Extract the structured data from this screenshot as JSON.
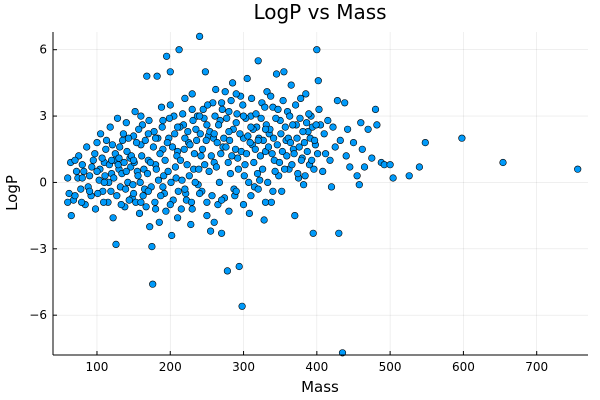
{
  "chart_data": {
    "type": "scatter",
    "title": "LogP vs Mass",
    "xlabel": "Mass",
    "ylabel": "LogP",
    "xlim": [
      40,
      770
    ],
    "ylim": [
      -7.8,
      6.8
    ],
    "xticks": [
      100,
      200,
      300,
      400,
      500,
      600,
      700
    ],
    "yticks": [
      -6,
      -3,
      0,
      3,
      6
    ],
    "ytick_labels": [
      "−6",
      "−3",
      "0",
      "3",
      "6"
    ],
    "grid": true,
    "legend": "none",
    "marker_color": "#009AFA",
    "points": [
      [
        60,
        0.2
      ],
      [
        62,
        -0.5
      ],
      [
        65,
        -1.5
      ],
      [
        68,
        -0.8
      ],
      [
        72,
        0.5
      ],
      [
        75,
        1.2
      ],
      [
        78,
        -0.3
      ],
      [
        80,
        0.8
      ],
      [
        84,
        -1.0
      ],
      [
        86,
        1.6
      ],
      [
        90,
        0.3
      ],
      [
        92,
        -0.6
      ],
      [
        95,
        1.0
      ],
      [
        98,
        -1.2
      ],
      [
        100,
        1.8
      ],
      [
        103,
        0.1
      ],
      [
        105,
        2.2
      ],
      [
        108,
        -0.4
      ],
      [
        110,
        0.9
      ],
      [
        112,
        1.5
      ],
      [
        115,
        -0.9
      ],
      [
        118,
        2.5
      ],
      [
        120,
        0.4
      ],
      [
        122,
        -1.6
      ],
      [
        125,
        1.3
      ],
      [
        126,
        -2.8
      ],
      [
        128,
        2.9
      ],
      [
        130,
        0.6
      ],
      [
        132,
        -0.2
      ],
      [
        135,
        1.9
      ],
      [
        138,
        -1.1
      ],
      [
        140,
        2.7
      ],
      [
        142,
        0.0
      ],
      [
        145,
        1.1
      ],
      [
        148,
        -0.7
      ],
      [
        150,
        2.1
      ],
      [
        152,
        3.2
      ],
      [
        155,
        0.5
      ],
      [
        158,
        -1.4
      ],
      [
        160,
        1.7
      ],
      [
        162,
        2.6
      ],
      [
        165,
        -0.3
      ],
      [
        168,
        4.8
      ],
      [
        170,
        1.0
      ],
      [
        172,
        -2.0
      ],
      [
        175,
        -2.9
      ],
      [
        176,
        -4.6
      ],
      [
        178,
        2.3
      ],
      [
        180,
        0.8
      ],
      [
        182,
        4.8
      ],
      [
        185,
        -1.8
      ],
      [
        188,
        3.4
      ],
      [
        190,
        1.5
      ],
      [
        192,
        -0.5
      ],
      [
        195,
        5.7
      ],
      [
        198,
        2.0
      ],
      [
        200,
        5.0
      ],
      [
        202,
        -2.4
      ],
      [
        205,
        3.0
      ],
      [
        208,
        0.2
      ],
      [
        210,
        1.4
      ],
      [
        212,
        6.0
      ],
      [
        215,
        -1.2
      ],
      [
        218,
        2.6
      ],
      [
        220,
        3.8
      ],
      [
        222,
        -0.8
      ],
      [
        225,
        1.8
      ],
      [
        228,
        -1.9
      ],
      [
        230,
        4.0
      ],
      [
        232,
        0.6
      ],
      [
        235,
        2.4
      ],
      [
        238,
        -0.1
      ],
      [
        240,
        6.6
      ],
      [
        242,
        1.2
      ],
      [
        245,
        3.3
      ],
      [
        248,
        5.0
      ],
      [
        250,
        -1.5
      ],
      [
        252,
        2.1
      ],
      [
        255,
        -2.2
      ],
      [
        258,
        3.6
      ],
      [
        260,
        0.9
      ],
      [
        262,
        4.2
      ],
      [
        265,
        -1.0
      ],
      [
        268,
        2.8
      ],
      [
        270,
        -2.3
      ],
      [
        272,
        1.6
      ],
      [
        275,
        4.1
      ],
      [
        278,
        -4.0
      ],
      [
        280,
        3.2
      ],
      [
        282,
        0.4
      ],
      [
        285,
        4.5
      ],
      [
        288,
        -0.6
      ],
      [
        290,
        2.7
      ],
      [
        292,
        1.1
      ],
      [
        294,
        -3.8
      ],
      [
        296,
        3.9
      ],
      [
        298,
        -5.6
      ],
      [
        300,
        2.0
      ],
      [
        302,
        0.8
      ],
      [
        305,
        4.7
      ],
      [
        308,
        -1.4
      ],
      [
        310,
        3.0
      ],
      [
        312,
        1.7
      ],
      [
        315,
        -0.2
      ],
      [
        318,
        2.5
      ],
      [
        320,
        5.5
      ],
      [
        322,
        0.1
      ],
      [
        325,
        3.6
      ],
      [
        328,
        -1.7
      ],
      [
        330,
        1.4
      ],
      [
        332,
        4.1
      ],
      [
        335,
        2.2
      ],
      [
        338,
        -0.9
      ],
      [
        340,
        3.4
      ],
      [
        342,
        1.0
      ],
      [
        345,
        4.9
      ],
      [
        348,
        0.3
      ],
      [
        350,
        2.8
      ],
      [
        352,
        -0.4
      ],
      [
        355,
        5.0
      ],
      [
        358,
        1.9
      ],
      [
        360,
        3.2
      ],
      [
        362,
        0.6
      ],
      [
        365,
        4.4
      ],
      [
        368,
        1.5
      ],
      [
        370,
        -1.5
      ],
      [
        372,
        2.6
      ],
      [
        375,
        0.2
      ],
      [
        378,
        3.8
      ],
      [
        380,
        1.1
      ],
      [
        382,
        -0.1
      ],
      [
        385,
        4.0
      ],
      [
        388,
        2.3
      ],
      [
        390,
        0.8
      ],
      [
        392,
        3.0
      ],
      [
        395,
        -2.3
      ],
      [
        398,
        1.7
      ],
      [
        400,
        6.0
      ],
      [
        402,
        4.6
      ],
      [
        405,
        2.6
      ],
      [
        408,
        0.5
      ],
      [
        410,
        2.2
      ],
      [
        412,
        1.3
      ],
      [
        415,
        2.8
      ],
      [
        418,
        1.0
      ],
      [
        420,
        -0.2
      ],
      [
        422,
        2.5
      ],
      [
        425,
        1.6
      ],
      [
        428,
        3.7
      ],
      [
        430,
        -2.3
      ],
      [
        432,
        1.9
      ],
      [
        435,
        -7.7
      ],
      [
        438,
        3.6
      ],
      [
        440,
        1.2
      ],
      [
        442,
        2.4
      ],
      [
        445,
        0.7
      ],
      [
        450,
        1.8
      ],
      [
        455,
        0.3
      ],
      [
        458,
        -0.1
      ],
      [
        460,
        2.7
      ],
      [
        462,
        1.5
      ],
      [
        465,
        0.7
      ],
      [
        470,
        2.4
      ],
      [
        475,
        1.1
      ],
      [
        480,
        3.3
      ],
      [
        482,
        2.6
      ],
      [
        488,
        0.9
      ],
      [
        492,
        0.8
      ],
      [
        500,
        0.8
      ],
      [
        504,
        0.2
      ],
      [
        526,
        0.3
      ],
      [
        540,
        0.7
      ],
      [
        548,
        1.8
      ],
      [
        598,
        2.0
      ],
      [
        654,
        0.9
      ],
      [
        756,
        0.6
      ],
      [
        64,
        0.9
      ],
      [
        70,
        -0.6
      ],
      [
        74,
        0.2
      ],
      [
        79,
        -0.9
      ],
      [
        82,
        0.5
      ],
      [
        88,
        -0.2
      ],
      [
        93,
        0.7
      ],
      [
        97,
        1.3
      ],
      [
        101,
        -0.5
      ],
      [
        104,
        0.6
      ],
      [
        107,
        1.1
      ],
      [
        109,
        -0.9
      ],
      [
        111,
        0.3
      ],
      [
        113,
        1.9
      ],
      [
        116,
        0.0
      ],
      [
        117,
        0.8
      ],
      [
        119,
        -0.4
      ],
      [
        121,
        1.7
      ],
      [
        123,
        0.2
      ],
      [
        124,
        1.0
      ],
      [
        127,
        -0.6
      ],
      [
        129,
        0.8
      ],
      [
        131,
        1.6
      ],
      [
        133,
        -1.0
      ],
      [
        134,
        0.4
      ],
      [
        136,
        2.2
      ],
      [
        137,
        0.9
      ],
      [
        139,
        -0.3
      ],
      [
        141,
        1.4
      ],
      [
        143,
        2.0
      ],
      [
        144,
        -0.8
      ],
      [
        146,
        0.7
      ],
      [
        147,
        1.2
      ],
      [
        149,
        -0.1
      ],
      [
        151,
        0.9
      ],
      [
        153,
        -0.9
      ],
      [
        154,
        1.8
      ],
      [
        156,
        0.3
      ],
      [
        157,
        2.4
      ],
      [
        159,
        0.0
      ],
      [
        161,
        1.2
      ],
      [
        163,
        -0.6
      ],
      [
        164,
        0.6
      ],
      [
        166,
        1.9
      ],
      [
        167,
        -1.1
      ],
      [
        169,
        0.4
      ],
      [
        171,
        2.8
      ],
      [
        173,
        0.9
      ],
      [
        174,
        -0.2
      ],
      [
        177,
        1.6
      ],
      [
        179,
        -0.9
      ],
      [
        181,
        0.6
      ],
      [
        183,
        2.0
      ],
      [
        184,
        0.1
      ],
      [
        186,
        1.3
      ],
      [
        187,
        -0.6
      ],
      [
        189,
        2.5
      ],
      [
        191,
        0.3
      ],
      [
        193,
        1.0
      ],
      [
        194,
        -1.3
      ],
      [
        196,
        1.8
      ],
      [
        197,
        0.5
      ],
      [
        199,
        2.9
      ],
      [
        201,
        0.0
      ],
      [
        203,
        1.6
      ],
      [
        204,
        -0.8
      ],
      [
        206,
        2.2
      ],
      [
        207,
        0.7
      ],
      [
        209,
        1.2
      ],
      [
        211,
        -0.4
      ],
      [
        213,
        2.5
      ],
      [
        214,
        1.0
      ],
      [
        216,
        0.1
      ],
      [
        217,
        3.1
      ],
      [
        219,
        1.5
      ],
      [
        221,
        -0.5
      ],
      [
        223,
        0.8
      ],
      [
        224,
        2.3
      ],
      [
        226,
        0.3
      ],
      [
        227,
        1.7
      ],
      [
        229,
        -0.9
      ],
      [
        231,
        2.8
      ],
      [
        233,
        1.3
      ],
      [
        234,
        0.0
      ],
      [
        236,
        1.9
      ],
      [
        237,
        3.0
      ],
      [
        239,
        0.6
      ],
      [
        241,
        2.2
      ],
      [
        243,
        -0.4
      ],
      [
        244,
        1.5
      ],
      [
        246,
        2.9
      ],
      [
        247,
        0.8
      ],
      [
        249,
        1.9
      ],
      [
        251,
        3.5
      ],
      [
        253,
        0.5
      ],
      [
        254,
        2.3
      ],
      [
        256,
        1.2
      ],
      [
        257,
        -0.6
      ],
      [
        259,
        2.0
      ],
      [
        261,
        3.0
      ],
      [
        263,
        0.7
      ],
      [
        264,
        1.8
      ],
      [
        266,
        2.6
      ],
      [
        267,
        0.0
      ],
      [
        269,
        1.3
      ],
      [
        271,
        3.3
      ],
      [
        273,
        2.0
      ],
      [
        274,
        -0.7
      ],
      [
        276,
        1.6
      ],
      [
        277,
        2.9
      ],
      [
        279,
        0.9
      ],
      [
        281,
        1.9
      ],
      [
        283,
        3.7
      ],
      [
        284,
        1.2
      ],
      [
        286,
        2.4
      ],
      [
        287,
        -0.3
      ],
      [
        289,
        1.5
      ],
      [
        291,
        3.1
      ],
      [
        293,
        0.6
      ],
      [
        295,
        2.2
      ],
      [
        297,
        1.4
      ],
      [
        299,
        3.5
      ],
      [
        301,
        0.3
      ],
      [
        303,
        2.9
      ],
      [
        304,
        1.3
      ],
      [
        306,
        2.1
      ],
      [
        307,
        0.0
      ],
      [
        309,
        1.8
      ],
      [
        311,
        3.8
      ],
      [
        313,
        2.4
      ],
      [
        314,
        0.9
      ],
      [
        316,
        1.5
      ],
      [
        317,
        3.1
      ],
      [
        319,
        0.4
      ],
      [
        321,
        2.0
      ],
      [
        323,
        1.2
      ],
      [
        324,
        2.9
      ],
      [
        326,
        0.6
      ],
      [
        327,
        1.9
      ],
      [
        329,
        3.4
      ],
      [
        331,
        2.6
      ],
      [
        333,
        0.0
      ],
      [
        334,
        1.6
      ],
      [
        336,
        2.4
      ],
      [
        337,
        3.9
      ],
      [
        339,
        1.3
      ],
      [
        341,
        2.0
      ],
      [
        343,
        0.5
      ],
      [
        344,
        2.9
      ],
      [
        346,
        1.7
      ],
      [
        347,
        3.3
      ],
      [
        349,
        0.9
      ],
      [
        351,
        2.2
      ],
      [
        353,
        1.4
      ],
      [
        354,
        3.7
      ],
      [
        356,
        0.6
      ],
      [
        357,
        2.5
      ],
      [
        359,
        1.2
      ],
      [
        361,
        2.0
      ],
      [
        363,
        3.0
      ],
      [
        364,
        1.8
      ],
      [
        366,
        0.8
      ],
      [
        367,
        2.6
      ],
      [
        369,
        1.3
      ],
      [
        371,
        3.5
      ],
      [
        373,
        2.0
      ],
      [
        374,
        0.4
      ],
      [
        376,
        1.6
      ],
      [
        377,
        2.9
      ],
      [
        379,
        1.0
      ],
      [
        381,
        2.3
      ],
      [
        383,
        1.8
      ],
      [
        384,
        0.3
      ],
      [
        386,
        2.7
      ],
      [
        387,
        1.4
      ],
      [
        389,
        3.1
      ],
      [
        391,
        2.0
      ],
      [
        393,
        1.0
      ],
      [
        394,
        2.5
      ],
      [
        396,
        0.6
      ],
      [
        397,
        1.9
      ],
      [
        399,
        2.6
      ],
      [
        401,
        1.3
      ],
      [
        403,
        3.3
      ],
      [
        180,
        2.0
      ],
      [
        190,
        2.8
      ],
      [
        200,
        3.5
      ],
      [
        210,
        2.5
      ],
      [
        220,
        2.0
      ],
      [
        230,
        3.3
      ],
      [
        240,
        3.0
      ],
      [
        250,
        2.6
      ],
      [
        260,
        2.2
      ],
      [
        270,
        3.6
      ],
      [
        280,
        2.3
      ],
      [
        290,
        4.0
      ],
      [
        300,
        3.0
      ],
      [
        310,
        2.5
      ],
      [
        320,
        1.9
      ],
      [
        330,
        2.4
      ],
      [
        160,
        3.0
      ],
      [
        170,
        2.2
      ],
      [
        150,
        1.0
      ],
      [
        140,
        0.5
      ],
      [
        130,
        1.1
      ],
      [
        120,
        1.0
      ],
      [
        110,
        0.0
      ],
      [
        100,
        0.5
      ],
      [
        90,
        -0.4
      ],
      [
        80,
        0.2
      ],
      [
        70,
        1.0
      ],
      [
        60,
        -0.9
      ],
      [
        150,
        -0.5
      ],
      [
        160,
        -0.9
      ],
      [
        170,
        -0.4
      ],
      [
        180,
        -1.2
      ],
      [
        190,
        -0.2
      ],
      [
        200,
        -1.0
      ],
      [
        210,
        -1.6
      ],
      [
        220,
        -0.3
      ],
      [
        230,
        -1.2
      ],
      [
        240,
        -0.5
      ],
      [
        250,
        -0.9
      ],
      [
        260,
        -1.8
      ],
      [
        270,
        -0.8
      ],
      [
        280,
        -1.3
      ],
      [
        290,
        -0.4
      ],
      [
        300,
        -1.0
      ],
      [
        310,
        -0.6
      ],
      [
        320,
        -0.3
      ],
      [
        330,
        -0.9
      ],
      [
        340,
        -0.4
      ]
    ]
  }
}
